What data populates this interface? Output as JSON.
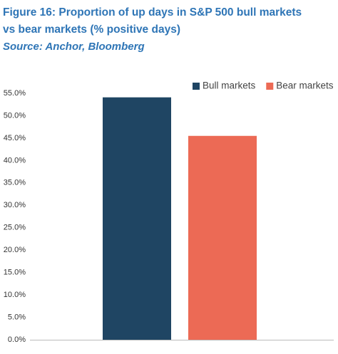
{
  "chart_data": {
    "type": "bar",
    "title": [
      "Figure 16: Proportion of up days in S&P 500 bull markets",
      "vs bear markets (% positive days)"
    ],
    "subtitle": "Source: Anchor, Bloomberg",
    "categories": [
      null
    ],
    "series": [
      {
        "name": "Bull markets",
        "color": "#1f4563",
        "values": [
          54.1
        ]
      },
      {
        "name": "Bear markets",
        "color": "#ec6a55",
        "values": [
          45.5
        ]
      }
    ],
    "ylim": [
      0,
      55
    ],
    "yticks": [
      {
        "value": 0,
        "label": "0.0%"
      },
      {
        "value": 5,
        "label": "5.0%"
      },
      {
        "value": 10,
        "label": "10.0%"
      },
      {
        "value": 15,
        "label": "15.0%"
      },
      {
        "value": 20,
        "label": "20.0%"
      },
      {
        "value": 25,
        "label": "25.0%"
      },
      {
        "value": 30,
        "label": "30.0%"
      },
      {
        "value": 35,
        "label": "35.0%"
      },
      {
        "value": 40,
        "label": "40.0%"
      },
      {
        "value": 45,
        "label": "45.0%"
      },
      {
        "value": 50,
        "label": "50.0%"
      },
      {
        "value": 55,
        "label": "55.0%"
      }
    ],
    "grid": false,
    "legend": "top-right"
  }
}
